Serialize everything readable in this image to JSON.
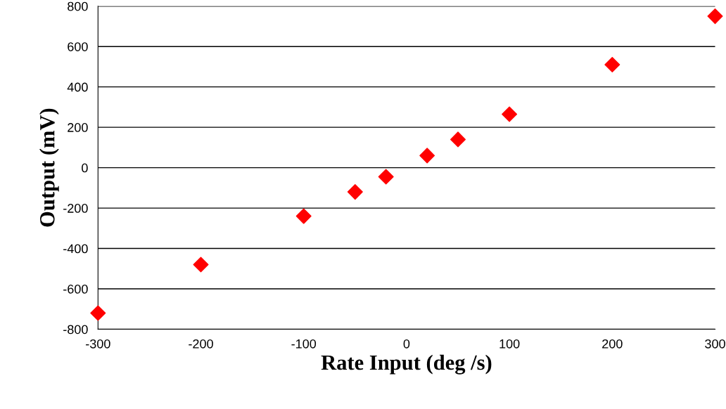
{
  "chart_data": {
    "type": "scatter",
    "xlabel": "Rate Input (deg /s)",
    "ylabel": "Output (mV)",
    "x": [
      -300,
      -200,
      -100,
      -50,
      -20,
      20,
      50,
      100,
      200,
      300
    ],
    "series": [
      {
        "color": "#ff0000",
        "values": [
          -720,
          -480,
          -240,
          -120,
          -45,
          60,
          140,
          265,
          510,
          750
        ]
      }
    ],
    "xlim": [
      -300,
      300
    ],
    "xticks": [
      -300,
      -200,
      -100,
      0,
      100,
      200,
      300
    ],
    "ylim": [
      -800,
      800
    ],
    "yticks": [
      -800,
      -600,
      -400,
      -200,
      0,
      200,
      400,
      600,
      800
    ],
    "grid": "y",
    "marker": "diamond",
    "legend": false
  }
}
